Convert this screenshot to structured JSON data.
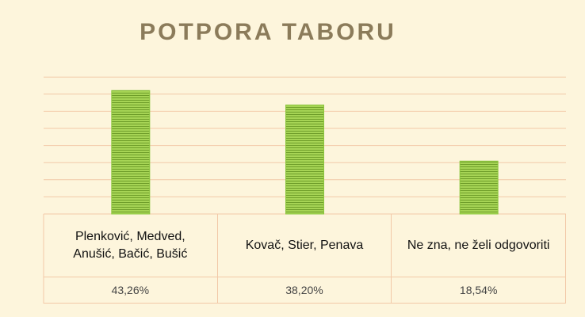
{
  "chart_data": {
    "type": "bar",
    "title": "POTPORA TABORU",
    "categories": [
      "Plenković,  Medved, Anušić, Bačić, Bušić",
      "Kovač, Stier, Penava",
      "Ne zna, ne želi odgovoriti"
    ],
    "values": [
      43.26,
      38.2,
      18.54
    ],
    "value_labels": [
      "43,26%",
      "38,20%",
      "18,54%"
    ],
    "color": "#8cc63e",
    "ylim": [
      0,
      50
    ],
    "yticks": [
      0,
      6,
      12,
      18,
      24,
      30,
      36,
      42,
      48
    ],
    "grid": true
  }
}
